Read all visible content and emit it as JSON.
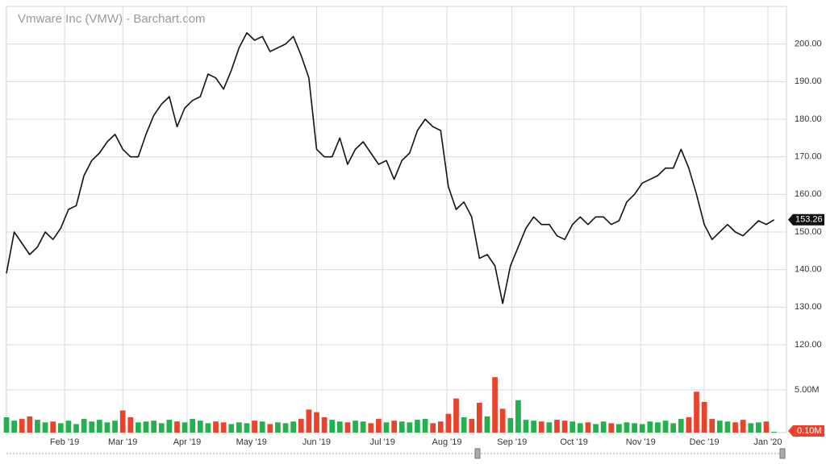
{
  "chart_data": {
    "type": "line",
    "title": "Vmware Inc (VMW) - Barchart.com",
    "series": [
      {
        "name": "VMW",
        "color": "#111111",
        "values": [
          139,
          150,
          147,
          144,
          146,
          150,
          148,
          151,
          156,
          157,
          165,
          169,
          171,
          174,
          176,
          172,
          170,
          170,
          176,
          181,
          184,
          186,
          178,
          183,
          185,
          186,
          192,
          191,
          188,
          193,
          199,
          203,
          201,
          202,
          198,
          199,
          200,
          202,
          197,
          191,
          172,
          170,
          170,
          175,
          168,
          172,
          174,
          171,
          168,
          169,
          164,
          169,
          171,
          177,
          180,
          178,
          177,
          162,
          156,
          158,
          154,
          143,
          144,
          141,
          131,
          141,
          146,
          151,
          154,
          152,
          152,
          149,
          148,
          152,
          154,
          152,
          154,
          154,
          152,
          153,
          158,
          160,
          163,
          164,
          165,
          167,
          167,
          172,
          167,
          160,
          152,
          148,
          150,
          152,
          150,
          149,
          151,
          153,
          152,
          153.26
        ]
      }
    ],
    "volume": {
      "up_color": "#22b14c",
      "down_color": "#e8442c",
      "values": [
        1.8,
        1.4,
        1.6,
        1.9,
        1.5,
        1.2,
        1.3,
        1.1,
        1.4,
        1.0,
        1.6,
        1.3,
        1.5,
        1.2,
        1.4,
        2.6,
        1.8,
        1.2,
        1.3,
        1.4,
        1.1,
        1.5,
        1.3,
        1.2,
        1.6,
        1.4,
        1.1,
        1.3,
        1.2,
        1.0,
        1.2,
        1.1,
        1.4,
        1.3,
        1.0,
        1.2,
        1.1,
        1.3,
        1.6,
        2.7,
        2.4,
        1.8,
        1.5,
        1.3,
        1.2,
        1.4,
        1.3,
        1.1,
        1.6,
        1.2,
        1.4,
        1.3,
        1.2,
        1.5,
        1.6,
        1.1,
        1.3,
        2.2,
        4.0,
        1.8,
        1.6,
        3.5,
        1.9,
        6.5,
        2.8,
        1.7,
        3.8,
        1.5,
        1.4,
        1.3,
        1.2,
        1.5,
        1.4,
        1.3,
        1.1,
        1.2,
        1.0,
        1.3,
        1.1,
        1.0,
        1.2,
        1.1,
        1.0,
        1.3,
        1.2,
        1.4,
        1.1,
        1.6,
        1.8,
        4.8,
        3.6,
        1.6,
        1.4,
        1.3,
        1.2,
        1.5,
        1.1,
        1.2,
        1.3,
        0.1
      ],
      "last_label": "0.10M",
      "vlim": [
        0,
        10.3
      ],
      "vticks": [
        {
          "value": 5,
          "label": "5.00M"
        }
      ]
    },
    "xlim": [
      0,
      100.6
    ],
    "xticks": [
      {
        "value": 7.5,
        "label": "Feb '19"
      },
      {
        "value": 15,
        "label": "Mar '19"
      },
      {
        "value": 23.3,
        "label": "Apr '19"
      },
      {
        "value": 31.6,
        "label": "May '19"
      },
      {
        "value": 40,
        "label": "Jun '19"
      },
      {
        "value": 48.5,
        "label": "Jul '19"
      },
      {
        "value": 56.8,
        "label": "Aug '19"
      },
      {
        "value": 65.2,
        "label": "Sep '19"
      },
      {
        "value": 73.2,
        "label": "Oct '19"
      },
      {
        "value": 81.8,
        "label": "Nov '19"
      },
      {
        "value": 90,
        "label": "Dec '19"
      },
      {
        "value": 98.2,
        "label": "Jan '20"
      }
    ],
    "ylim": [
      120,
      210
    ],
    "yticks": [
      {
        "value": 120,
        "label": "120.00"
      },
      {
        "value": 130,
        "label": "130.00"
      },
      {
        "value": 140,
        "label": "140.00"
      },
      {
        "value": 150,
        "label": "150.00"
      },
      {
        "value": 160,
        "label": "160.00"
      },
      {
        "value": 170,
        "label": "170.00"
      },
      {
        "value": 180,
        "label": "180.00"
      },
      {
        "value": 190,
        "label": "190.00"
      },
      {
        "value": 200,
        "label": "200.00"
      }
    ],
    "grid": true
  }
}
